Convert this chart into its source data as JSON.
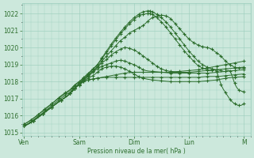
{
  "bg_color": "#cce8dc",
  "grid_color": "#99ccbb",
  "line_color": "#2d6e2d",
  "marker_color": "#2d6e2d",
  "ylabel_ticks": [
    1015,
    1016,
    1017,
    1018,
    1019,
    1020,
    1021,
    1022
  ],
  "ylim": [
    1014.8,
    1022.6
  ],
  "xlabel": "Pression niveau de la mer( hPa )",
  "x_tick_labels": [
    "Ven",
    "Sam",
    "Dim",
    "Lun",
    "M"
  ],
  "x_tick_pos": [
    0,
    24,
    48,
    72,
    96
  ],
  "xlim": [
    -1,
    99
  ],
  "n_points": 97,
  "series": [
    {
      "pts": [
        [
          0,
          1015.4
        ],
        [
          4,
          1015.7
        ],
        [
          8,
          1016.1
        ],
        [
          12,
          1016.5
        ],
        [
          16,
          1016.9
        ],
        [
          20,
          1017.3
        ],
        [
          22,
          1017.6
        ],
        [
          24,
          1017.8
        ],
        [
          26,
          1018.0
        ],
        [
          28,
          1018.1
        ],
        [
          30,
          1018.15
        ],
        [
          32,
          1018.2
        ],
        [
          36,
          1018.25
        ],
        [
          40,
          1018.25
        ],
        [
          44,
          1018.25
        ],
        [
          48,
          1018.25
        ],
        [
          52,
          1018.25
        ],
        [
          56,
          1018.25
        ],
        [
          60,
          1018.25
        ],
        [
          64,
          1018.25
        ],
        [
          68,
          1018.25
        ],
        [
          72,
          1018.25
        ],
        [
          76,
          1018.25
        ],
        [
          80,
          1018.3
        ],
        [
          84,
          1018.3
        ],
        [
          88,
          1018.35
        ],
        [
          92,
          1018.4
        ],
        [
          96,
          1018.45
        ]
      ],
      "marker_every": 3
    },
    {
      "pts": [
        [
          0,
          1015.4
        ],
        [
          4,
          1015.7
        ],
        [
          8,
          1016.1
        ],
        [
          12,
          1016.5
        ],
        [
          16,
          1016.9
        ],
        [
          20,
          1017.3
        ],
        [
          22,
          1017.6
        ],
        [
          24,
          1017.8
        ],
        [
          26,
          1018.0
        ],
        [
          28,
          1018.1
        ],
        [
          30,
          1018.15
        ],
        [
          32,
          1018.2
        ],
        [
          36,
          1018.3
        ],
        [
          40,
          1018.4
        ],
        [
          44,
          1018.5
        ],
        [
          48,
          1018.55
        ],
        [
          52,
          1018.55
        ],
        [
          56,
          1018.55
        ],
        [
          60,
          1018.55
        ],
        [
          64,
          1018.55
        ],
        [
          68,
          1018.55
        ],
        [
          72,
          1018.55
        ],
        [
          76,
          1018.6
        ],
        [
          80,
          1018.65
        ],
        [
          84,
          1018.7
        ],
        [
          88,
          1018.75
        ],
        [
          92,
          1018.8
        ],
        [
          96,
          1018.85
        ]
      ],
      "marker_every": 3
    },
    {
      "pts": [
        [
          0,
          1015.4
        ],
        [
          4,
          1015.7
        ],
        [
          8,
          1016.1
        ],
        [
          12,
          1016.5
        ],
        [
          16,
          1016.9
        ],
        [
          20,
          1017.3
        ],
        [
          22,
          1017.6
        ],
        [
          24,
          1017.85
        ],
        [
          26,
          1018.05
        ],
        [
          28,
          1018.2
        ],
        [
          30,
          1018.35
        ],
        [
          32,
          1018.55
        ],
        [
          34,
          1018.75
        ],
        [
          36,
          1018.85
        ],
        [
          38,
          1018.9
        ],
        [
          40,
          1018.9
        ],
        [
          42,
          1018.85
        ],
        [
          44,
          1018.75
        ],
        [
          46,
          1018.6
        ],
        [
          48,
          1018.45
        ],
        [
          50,
          1018.3
        ],
        [
          52,
          1018.2
        ],
        [
          56,
          1018.1
        ],
        [
          60,
          1018.05
        ],
        [
          64,
          1018.0
        ],
        [
          68,
          1018.0
        ],
        [
          72,
          1018.0
        ],
        [
          76,
          1018.0
        ],
        [
          80,
          1018.05
        ],
        [
          84,
          1018.1
        ],
        [
          88,
          1018.2
        ],
        [
          92,
          1018.25
        ],
        [
          96,
          1018.3
        ]
      ],
      "marker_every": 3
    },
    {
      "pts": [
        [
          0,
          1015.4
        ],
        [
          4,
          1015.7
        ],
        [
          8,
          1016.1
        ],
        [
          12,
          1016.5
        ],
        [
          16,
          1016.9
        ],
        [
          20,
          1017.3
        ],
        [
          22,
          1017.6
        ],
        [
          24,
          1017.85
        ],
        [
          26,
          1018.1
        ],
        [
          28,
          1018.3
        ],
        [
          30,
          1018.55
        ],
        [
          32,
          1018.75
        ],
        [
          34,
          1018.9
        ],
        [
          36,
          1019.0
        ],
        [
          38,
          1019.1
        ],
        [
          40,
          1019.2
        ],
        [
          42,
          1019.25
        ],
        [
          44,
          1019.2
        ],
        [
          46,
          1019.1
        ],
        [
          48,
          1019.0
        ],
        [
          50,
          1018.85
        ],
        [
          52,
          1018.7
        ],
        [
          56,
          1018.6
        ],
        [
          60,
          1018.55
        ],
        [
          64,
          1018.5
        ],
        [
          68,
          1018.5
        ],
        [
          72,
          1018.5
        ],
        [
          76,
          1018.5
        ],
        [
          80,
          1018.5
        ],
        [
          84,
          1018.55
        ],
        [
          88,
          1018.6
        ],
        [
          92,
          1018.65
        ],
        [
          96,
          1018.7
        ]
      ],
      "marker_every": 3
    },
    {
      "pts": [
        [
          0,
          1015.4
        ],
        [
          4,
          1015.7
        ],
        [
          8,
          1016.1
        ],
        [
          12,
          1016.5
        ],
        [
          16,
          1016.9
        ],
        [
          20,
          1017.3
        ],
        [
          22,
          1017.6
        ],
        [
          24,
          1017.9
        ],
        [
          26,
          1018.15
        ],
        [
          28,
          1018.4
        ],
        [
          30,
          1018.6
        ],
        [
          32,
          1018.85
        ],
        [
          34,
          1019.1
        ],
        [
          36,
          1019.3
        ],
        [
          38,
          1019.55
        ],
        [
          40,
          1019.75
        ],
        [
          42,
          1019.9
        ],
        [
          44,
          1020.0
        ],
        [
          46,
          1019.95
        ],
        [
          48,
          1019.85
        ],
        [
          50,
          1019.7
        ],
        [
          52,
          1019.5
        ],
        [
          54,
          1019.3
        ],
        [
          56,
          1019.1
        ],
        [
          58,
          1018.9
        ],
        [
          60,
          1018.75
        ],
        [
          62,
          1018.65
        ],
        [
          64,
          1018.6
        ],
        [
          68,
          1018.6
        ],
        [
          72,
          1018.65
        ],
        [
          76,
          1018.7
        ],
        [
          80,
          1018.8
        ],
        [
          84,
          1018.9
        ],
        [
          88,
          1019.0
        ],
        [
          92,
          1019.1
        ],
        [
          96,
          1019.2
        ]
      ],
      "marker_every": 3
    },
    {
      "pts": [
        [
          0,
          1015.4
        ],
        [
          3,
          1015.65
        ],
        [
          6,
          1015.95
        ],
        [
          9,
          1016.25
        ],
        [
          12,
          1016.6
        ],
        [
          15,
          1016.9
        ],
        [
          18,
          1017.2
        ],
        [
          21,
          1017.5
        ],
        [
          22,
          1017.65
        ],
        [
          24,
          1017.85
        ],
        [
          26,
          1018.1
        ],
        [
          28,
          1018.35
        ],
        [
          30,
          1018.6
        ],
        [
          32,
          1018.9
        ],
        [
          34,
          1019.2
        ],
        [
          36,
          1019.5
        ],
        [
          38,
          1019.8
        ],
        [
          40,
          1020.1
        ],
        [
          42,
          1020.4
        ],
        [
          44,
          1020.6
        ],
        [
          46,
          1020.85
        ],
        [
          48,
          1021.0
        ],
        [
          50,
          1021.15
        ],
        [
          52,
          1021.3
        ],
        [
          54,
          1021.55
        ],
        [
          56,
          1021.75
        ],
        [
          58,
          1021.85
        ],
        [
          60,
          1021.9
        ],
        [
          62,
          1021.85
        ],
        [
          64,
          1021.7
        ],
        [
          66,
          1021.4
        ],
        [
          68,
          1021.1
        ],
        [
          70,
          1020.8
        ],
        [
          72,
          1020.5
        ],
        [
          74,
          1020.3
        ],
        [
          76,
          1020.15
        ],
        [
          78,
          1020.05
        ],
        [
          80,
          1020.0
        ],
        [
          82,
          1019.9
        ],
        [
          84,
          1019.7
        ],
        [
          86,
          1019.5
        ],
        [
          88,
          1019.2
        ],
        [
          90,
          1019.0
        ],
        [
          92,
          1018.85
        ],
        [
          94,
          1018.8
        ],
        [
          96,
          1018.8
        ]
      ],
      "marker_every": 3
    },
    {
      "pts": [
        [
          0,
          1015.5
        ],
        [
          3,
          1015.75
        ],
        [
          6,
          1016.05
        ],
        [
          9,
          1016.35
        ],
        [
          12,
          1016.7
        ],
        [
          15,
          1017.0
        ],
        [
          18,
          1017.3
        ],
        [
          21,
          1017.6
        ],
        [
          22,
          1017.75
        ],
        [
          24,
          1017.95
        ],
        [
          26,
          1018.2
        ],
        [
          28,
          1018.45
        ],
        [
          30,
          1018.7
        ],
        [
          32,
          1019.0
        ],
        [
          34,
          1019.4
        ],
        [
          36,
          1019.8
        ],
        [
          38,
          1020.2
        ],
        [
          40,
          1020.55
        ],
        [
          42,
          1020.9
        ],
        [
          44,
          1021.2
        ],
        [
          46,
          1021.5
        ],
        [
          48,
          1021.75
        ],
        [
          50,
          1021.95
        ],
        [
          52,
          1022.1
        ],
        [
          54,
          1022.15
        ],
        [
          55,
          1022.15
        ],
        [
          56,
          1022.1
        ],
        [
          58,
          1021.95
        ],
        [
          60,
          1021.75
        ],
        [
          62,
          1021.5
        ],
        [
          64,
          1021.2
        ],
        [
          66,
          1020.85
        ],
        [
          68,
          1020.5
        ],
        [
          70,
          1020.15
        ],
        [
          72,
          1019.8
        ],
        [
          74,
          1019.5
        ],
        [
          76,
          1019.2
        ],
        [
          78,
          1019.0
        ],
        [
          80,
          1018.85
        ],
        [
          82,
          1018.75
        ],
        [
          84,
          1018.7
        ],
        [
          86,
          1018.65
        ],
        [
          88,
          1018.6
        ],
        [
          90,
          1018.6
        ],
        [
          92,
          1017.9
        ],
        [
          94,
          1017.5
        ],
        [
          96,
          1017.4
        ]
      ],
      "marker_every": 3
    },
    {
      "pts": [
        [
          0,
          1015.5
        ],
        [
          3,
          1015.75
        ],
        [
          6,
          1016.05
        ],
        [
          9,
          1016.4
        ],
        [
          12,
          1016.7
        ],
        [
          15,
          1017.05
        ],
        [
          18,
          1017.35
        ],
        [
          21,
          1017.65
        ],
        [
          22,
          1017.8
        ],
        [
          24,
          1018.0
        ],
        [
          26,
          1018.25
        ],
        [
          28,
          1018.5
        ],
        [
          30,
          1018.75
        ],
        [
          32,
          1019.0
        ],
        [
          34,
          1019.35
        ],
        [
          36,
          1019.7
        ],
        [
          38,
          1020.1
        ],
        [
          40,
          1020.45
        ],
        [
          42,
          1020.8
        ],
        [
          44,
          1021.1
        ],
        [
          46,
          1021.4
        ],
        [
          48,
          1021.65
        ],
        [
          50,
          1021.85
        ],
        [
          52,
          1021.95
        ],
        [
          54,
          1022.0
        ],
        [
          55,
          1022.0
        ],
        [
          56,
          1021.95
        ],
        [
          58,
          1021.75
        ],
        [
          60,
          1021.5
        ],
        [
          62,
          1021.2
        ],
        [
          64,
          1020.85
        ],
        [
          66,
          1020.5
        ],
        [
          68,
          1020.15
        ],
        [
          70,
          1019.8
        ],
        [
          72,
          1019.5
        ],
        [
          74,
          1019.2
        ],
        [
          76,
          1018.95
        ],
        [
          78,
          1018.8
        ],
        [
          80,
          1018.7
        ],
        [
          82,
          1018.65
        ],
        [
          84,
          1018.6
        ],
        [
          86,
          1017.85
        ],
        [
          88,
          1017.35
        ],
        [
          90,
          1016.95
        ],
        [
          92,
          1016.7
        ],
        [
          94,
          1016.6
        ],
        [
          96,
          1016.7
        ]
      ],
      "marker_every": 3
    }
  ]
}
